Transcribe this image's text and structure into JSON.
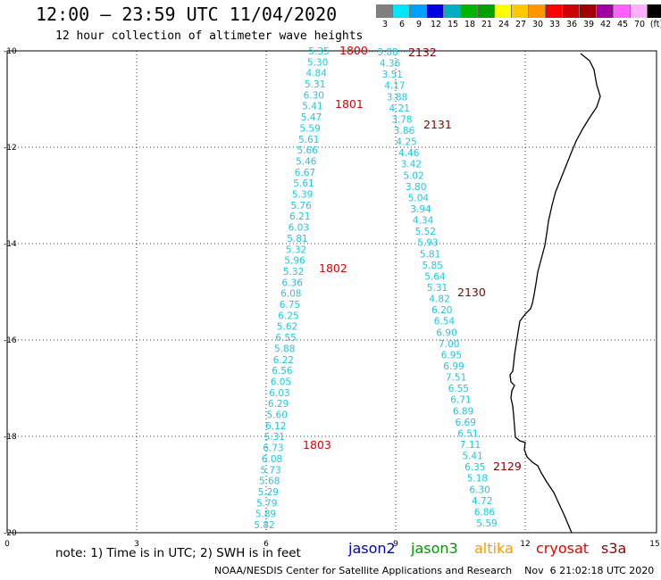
{
  "header": {
    "title": "12:00 – 23:59 UTC 11/04/2020",
    "subtitle": "12 hour collection of altimeter wave heights"
  },
  "color_scale": {
    "labels": [
      "3",
      "6",
      "9",
      "12",
      "15",
      "18",
      "21",
      "24",
      "27",
      "30",
      "33",
      "36",
      "39",
      "42",
      "45",
      "70",
      "(ft)"
    ],
    "colors": [
      "#808080",
      "#00e5ff",
      "#00a0ff",
      "#0000e0",
      "#00b0c0",
      "#00b400",
      "#00a000",
      "#ffff00",
      "#ffc800",
      "#ff9600",
      "#ff0000",
      "#d00000",
      "#a00000",
      "#a000a0",
      "#ff60ff",
      "#ffb0ff",
      "#000000"
    ]
  },
  "axes": {
    "x_ticks": [
      "0",
      "3",
      "6",
      "9",
      "12",
      "15"
    ],
    "y_ticks": [
      "-10",
      "-12",
      "-14",
      "-16",
      "-18",
      "-20"
    ]
  },
  "track_labels": {
    "t1800": "1800",
    "t1801": "1801",
    "t1802": "1802",
    "t1803": "1803",
    "t2132": "2132",
    "t2131": "2131",
    "t2130": "2130",
    "t2129": "2129"
  },
  "track_colors": {
    "track_1800": "#e00000",
    "track_2132": "#8b0000"
  },
  "track1_values": [
    "5.35",
    "5.30",
    "4.84",
    "5.31",
    "6.30",
    "5.41",
    "5.47",
    "5.59",
    "5.61",
    "5.66",
    "5.46",
    "6.67",
    "5.61",
    "5.39",
    "5.76",
    "6.21",
    "6.03",
    "5.81",
    "5.32",
    "5.96",
    "5.32",
    "6.36",
    "6.08",
    "6.75",
    "6.25",
    "5.62",
    "6.55",
    "5.88",
    "6.22",
    "6.56",
    "6.05",
    "6.03",
    "6.29",
    "5.60",
    "6.12",
    "5.31",
    "6.73",
    "6.08",
    "5.73",
    "5.68",
    "5.29",
    "5.79",
    "5.89",
    "5.82"
  ],
  "track2_values": [
    "3.88",
    "4.36",
    "3.51",
    "4.17",
    "3.88",
    "4.21",
    "3.78",
    "3.86",
    "4.25",
    "4.46",
    "3.42",
    "5.02",
    "3.80",
    "5.04",
    "3.94",
    "4.34",
    "5.52",
    "5.93",
    "5.81",
    "5.85",
    "5.64",
    "5.31",
    "4.82",
    "6.20",
    "6.54",
    "6.90",
    "7.00",
    "6.95",
    "6.99",
    "7.51",
    "6.55",
    "6.71",
    "6.89",
    "6.69",
    "6.51",
    "7.11",
    "5.41",
    "6.35",
    "5.18",
    "6.30",
    "4.72",
    "6.86",
    "5.59"
  ],
  "note": "note:  1) Time is in UTC;  2) SWH is in feet",
  "legend": [
    {
      "name": "jason2",
      "color": "#0000cc"
    },
    {
      "name": "jason3",
      "color": "#009a00"
    },
    {
      "name": "altika",
      "color": "#ff9900"
    },
    {
      "name": "cryosat",
      "color": "#ee0000"
    },
    {
      "name": "s3a",
      "color": "#990000"
    }
  ],
  "footer": "NOAA/NESDIS Center for Satellite Applications and Research    Nov  6 21:02:18 UTC 2020"
}
